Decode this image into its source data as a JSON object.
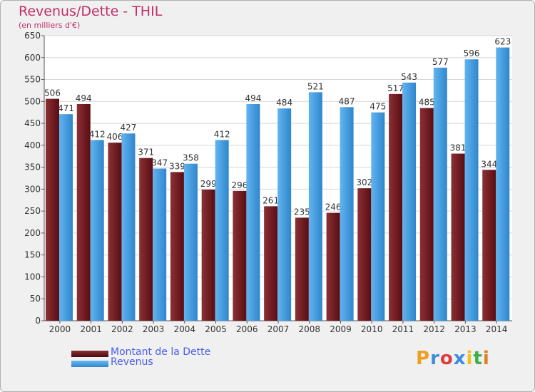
{
  "chart_data": {
    "type": "bar",
    "title": "Revenus/Dette - THIL",
    "subtitle": "(en milliers d'€)",
    "categories": [
      "2000",
      "2001",
      "2002",
      "2003",
      "2004",
      "2005",
      "2006",
      "2007",
      "2008",
      "2009",
      "2010",
      "2011",
      "2012",
      "2013",
      "2014"
    ],
    "series": [
      {
        "name": "Montant de la Dette",
        "color": "#6b1a1e",
        "values": [
          506,
          494,
          406,
          371,
          339,
          299,
          296,
          261,
          235,
          246,
          302,
          517,
          485,
          381,
          344
        ]
      },
      {
        "name": "Revenus",
        "color": "#4aa3e6",
        "values": [
          471,
          412,
          427,
          347,
          358,
          412,
          494,
          484,
          521,
          487,
          475,
          543,
          577,
          596,
          623
        ]
      }
    ],
    "ylim": [
      0,
      650
    ],
    "yticks": [
      0,
      50,
      100,
      150,
      200,
      250,
      300,
      350,
      400,
      450,
      500,
      550,
      600,
      650
    ],
    "grid": true,
    "legend": "bottom-left"
  },
  "logo": {
    "letters": [
      "P",
      "r",
      "o",
      "x",
      "i",
      "t",
      "i"
    ],
    "colors": [
      "#f0a020",
      "#3b8de0",
      "#e03a3a",
      "#3b8de0",
      "#f0c020",
      "#3bb04a",
      "#e08020"
    ]
  }
}
